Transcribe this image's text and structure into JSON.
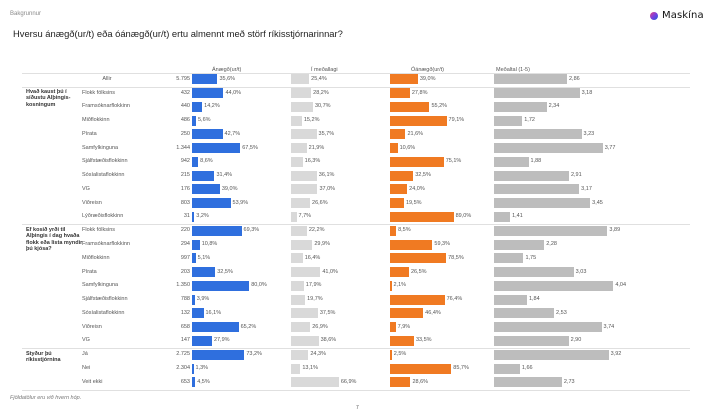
{
  "header": {
    "breadcrumb": "Bakgrunnur",
    "brand": "Maskína",
    "title": "Hversu ánægð(ur/t) eða óánægð(ur/t) ertu almennt með störf ríkisstjórnarinnar?"
  },
  "footer": {
    "note": "Fjöldatölur eru við hvern hóp.",
    "page_number": "7"
  },
  "colors": {
    "satisfied": "#2f6fde",
    "neutral": "#d9d9d9",
    "dissatisfied": "#f07a22",
    "mean": "#bdbdbd"
  },
  "chart_data": {
    "type": "bar",
    "title": "Hversu ánægð(ur/t) eða óánægð(ur/t) ertu almennt með störf ríkisstjórnarinnar?",
    "columns": [
      "Ánægð(ur/t)",
      "Í meðallagi",
      "Óánægð(ur/t)",
      "Meðaltal (1-5)"
    ],
    "mean_range": [
      1,
      5
    ],
    "percent_range": [
      0,
      100
    ],
    "overall": {
      "label": "Allir",
      "n": "5.795",
      "satisfied": 35.6,
      "neutral": 25.4,
      "dissatisfied": 39.0,
      "mean": 2.86
    },
    "groups": [
      {
        "label": "Hvað kaust þú í síðustu Alþingis-kosningum",
        "rows": [
          {
            "label": "Flokk fólksins",
            "n": "432",
            "satisfied": 44.0,
            "neutral": 28.2,
            "dissatisfied": 27.8,
            "mean": 3.18
          },
          {
            "label": "Framsóknarflokkinn",
            "n": "440",
            "satisfied": 14.2,
            "neutral": 30.7,
            "dissatisfied": 55.2,
            "mean": 2.34
          },
          {
            "label": "Miðflokkinn",
            "n": "486",
            "satisfied": 5.6,
            "neutral": 15.2,
            "dissatisfied": 79.1,
            "mean": 1.72
          },
          {
            "label": "Pírata",
            "n": "250",
            "satisfied": 42.7,
            "neutral": 35.7,
            "dissatisfied": 21.6,
            "mean": 3.23
          },
          {
            "label": "Samfylkinguna",
            "n": "1.344",
            "satisfied": 67.5,
            "neutral": 21.9,
            "dissatisfied": 10.6,
            "mean": 3.77
          },
          {
            "label": "Sjálfstæðisflokkinn",
            "n": "942",
            "satisfied": 8.6,
            "neutral": 16.3,
            "dissatisfied": 75.1,
            "mean": 1.88
          },
          {
            "label": "Sósíalistaflokkinn",
            "n": "215",
            "satisfied": 31.4,
            "neutral": 36.1,
            "dissatisfied": 32.5,
            "mean": 2.91
          },
          {
            "label": "VG",
            "n": "176",
            "satisfied": 39.0,
            "neutral": 37.0,
            "dissatisfied": 24.0,
            "mean": 3.17
          },
          {
            "label": "Viðreisn",
            "n": "803",
            "satisfied": 53.9,
            "neutral": 26.6,
            "dissatisfied": 19.5,
            "mean": 3.45
          },
          {
            "label": "Lýðræðisflokkinn",
            "n": "31",
            "satisfied": 3.2,
            "neutral": 7.7,
            "dissatisfied": 89.0,
            "mean": 1.41
          }
        ]
      },
      {
        "label": "Ef kosið yrði til Alþingis í dag hvaða flokk eða lista myndir þú kjósa?",
        "rows": [
          {
            "label": "Flokk fólksins",
            "n": "220",
            "satisfied": 69.3,
            "neutral": 22.2,
            "dissatisfied": 8.5,
            "mean": 3.89
          },
          {
            "label": "Framsóknarflokkinn",
            "n": "294",
            "satisfied": 10.8,
            "neutral": 29.9,
            "dissatisfied": 59.3,
            "mean": 2.28
          },
          {
            "label": "Miðflokkinn",
            "n": "997",
            "satisfied": 5.1,
            "neutral": 16.4,
            "dissatisfied": 78.5,
            "mean": 1.75
          },
          {
            "label": "Pírata",
            "n": "203",
            "satisfied": 32.5,
            "neutral": 41.0,
            "dissatisfied": 26.5,
            "mean": 3.03
          },
          {
            "label": "Samfylkinguna",
            "n": "1.350",
            "satisfied": 80.0,
            "neutral": 17.9,
            "dissatisfied": 2.1,
            "mean": 4.04
          },
          {
            "label": "Sjálfstæðisflokkinn",
            "n": "788",
            "satisfied": 3.9,
            "neutral": 19.7,
            "dissatisfied": 76.4,
            "mean": 1.84
          },
          {
            "label": "Sósíalistaflokkinn",
            "n": "132",
            "satisfied": 16.1,
            "neutral": 37.5,
            "dissatisfied": 46.4,
            "mean": 2.53
          },
          {
            "label": "Viðreisn",
            "n": "658",
            "satisfied": 65.2,
            "neutral": 26.9,
            "dissatisfied": 7.9,
            "mean": 3.74
          },
          {
            "label": "VG",
            "n": "147",
            "satisfied": 27.9,
            "neutral": 38.6,
            "dissatisfied": 33.5,
            "mean": 2.9
          }
        ]
      },
      {
        "label": "Styður þú ríkisstjórnina",
        "rows": [
          {
            "label": "Já",
            "n": "2.725",
            "satisfied": 73.2,
            "neutral": 24.3,
            "dissatisfied": 2.5,
            "mean": 3.92
          },
          {
            "label": "Nei",
            "n": "2.304",
            "satisfied": 1.3,
            "neutral": 13.1,
            "dissatisfied": 85.7,
            "mean": 1.66
          },
          {
            "label": "Veit ekki",
            "n": "653",
            "satisfied": 4.5,
            "neutral": 66.9,
            "dissatisfied": 28.6,
            "mean": 2.73
          }
        ]
      }
    ]
  }
}
